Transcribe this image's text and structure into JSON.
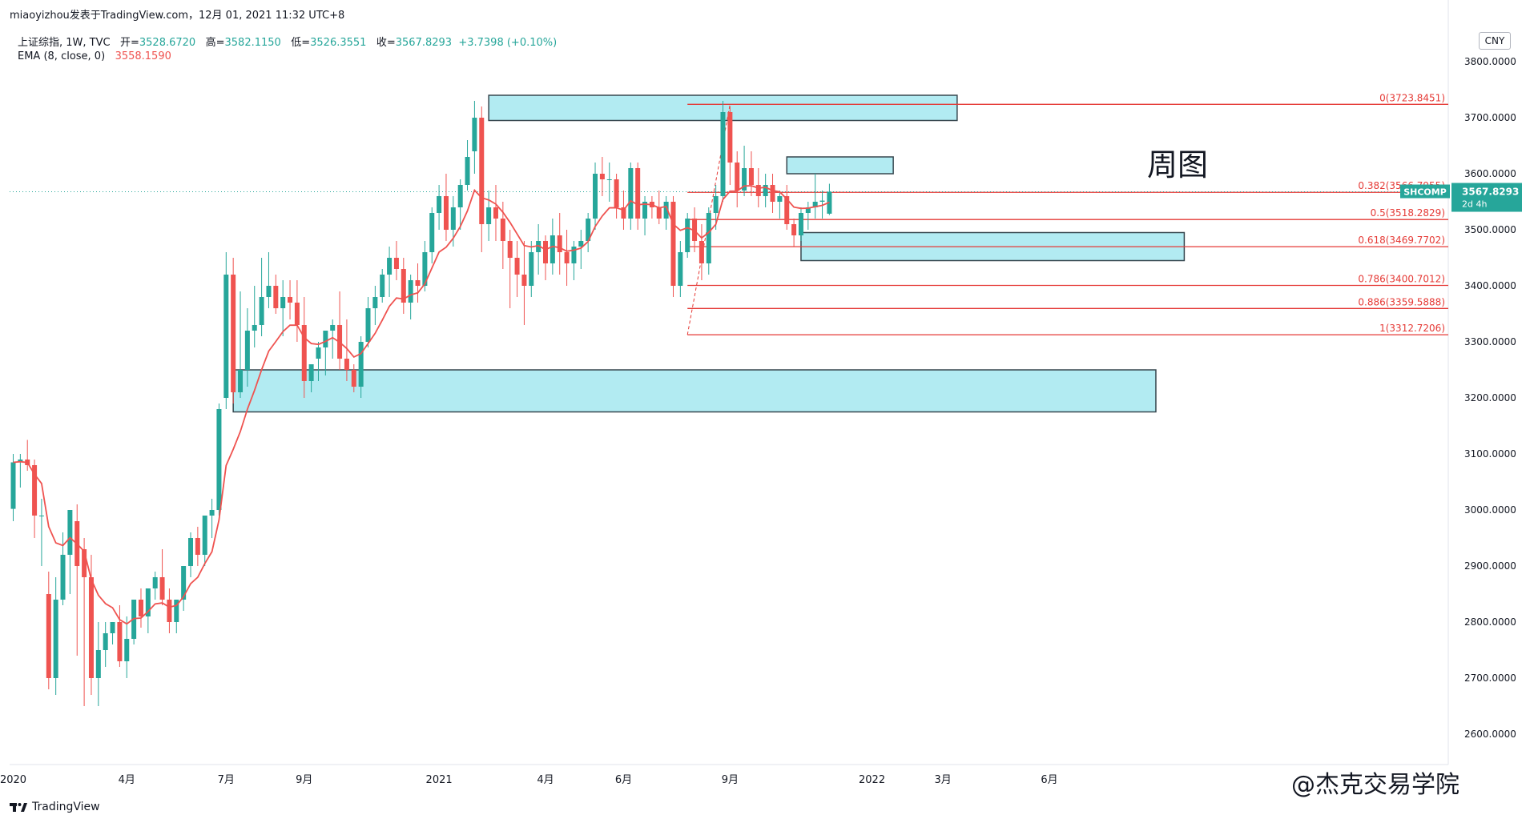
{
  "header": {
    "publisher": "miaoyizhou发表于TradingView.com，12月 01, 2021 11:32 UTC+8",
    "symbol": "上证综指, 1W, TVC",
    "open_label": "开=",
    "open": "3528.6720",
    "high_label": "高=",
    "high": "3582.1150",
    "low_label": "低=",
    "low": "3526.3551",
    "close_label": "收=",
    "close": "3567.8293",
    "change": "+3.7398 (+0.10%)",
    "ema_label": "EMA (8, close, 0)",
    "ema_value": "3558.1590"
  },
  "currency": "CNY",
  "annotation_title": "周图",
  "footer": {
    "brand": "TradingView",
    "watermark": "@杰克交易学院"
  },
  "price_tag": {
    "symbol": "SHCOMP",
    "value": "3567.8293",
    "countdown": "2d 4h"
  },
  "colors": {
    "up": "#26a69a",
    "down": "#ef5350",
    "ema": "#ef5350",
    "zone_fill": "#b2ebf2",
    "zone_border": "#37474f",
    "fib": "#e53935"
  },
  "chart_data": {
    "type": "candlestick",
    "title": "上证综指, 1W, TVC",
    "ylim": [
      2530,
      3860
    ],
    "y_ticks": [
      "3800.0000",
      "3700.0000",
      "3600.0000",
      "3500.0000",
      "3400.0000",
      "3300.0000",
      "3200.0000",
      "3100.0000",
      "3000.0000",
      "2900.0000",
      "2800.0000",
      "2700.0000",
      "2600.0000"
    ],
    "x_tick_labels": [
      "2020",
      "4月",
      "7月",
      "9月",
      "2021",
      "4月",
      "6月",
      "9月",
      "2022",
      "3月",
      "6月"
    ],
    "ohlc": [
      [
        3002,
        3100,
        2980,
        3085
      ],
      [
        3085,
        3100,
        3040,
        3090
      ],
      [
        3090,
        3125,
        3070,
        3080
      ],
      [
        3080,
        3090,
        2950,
        2990
      ],
      [
        2990,
        3020,
        2900,
        2990
      ],
      [
        2850,
        2890,
        2680,
        2700
      ],
      [
        2700,
        2880,
        2670,
        2840
      ],
      [
        2840,
        2960,
        2830,
        2920
      ],
      [
        2920,
        3000,
        2850,
        3000
      ],
      [
        2980,
        3010,
        2740,
        2900
      ],
      [
        2930,
        2950,
        2650,
        2880
      ],
      [
        2880,
        2920,
        2670,
        2700
      ],
      [
        2700,
        2800,
        2650,
        2750
      ],
      [
        2750,
        2800,
        2720,
        2780
      ],
      [
        2780,
        2800,
        2760,
        2800
      ],
      [
        2800,
        2830,
        2720,
        2730
      ],
      [
        2730,
        2810,
        2700,
        2770
      ],
      [
        2770,
        2840,
        2760,
        2840
      ],
      [
        2840,
        2860,
        2790,
        2810
      ],
      [
        2810,
        2860,
        2780,
        2860
      ],
      [
        2860,
        2890,
        2840,
        2880
      ],
      [
        2880,
        2930,
        2830,
        2840
      ],
      [
        2840,
        2860,
        2780,
        2800
      ],
      [
        2800,
        2840,
        2780,
        2840
      ],
      [
        2840,
        2900,
        2820,
        2900
      ],
      [
        2900,
        2960,
        2880,
        2950
      ],
      [
        2950,
        2970,
        2900,
        2920
      ],
      [
        2920,
        2990,
        2900,
        2990
      ],
      [
        2990,
        3020,
        2950,
        3000
      ],
      [
        3000,
        3190,
        2990,
        3180
      ],
      [
        3200,
        3460,
        3180,
        3420
      ],
      [
        3420,
        3450,
        3190,
        3210
      ],
      [
        3210,
        3390,
        3200,
        3250
      ],
      [
        3250,
        3360,
        3220,
        3320
      ],
      [
        3320,
        3400,
        3290,
        3330
      ],
      [
        3330,
        3450,
        3310,
        3380
      ],
      [
        3380,
        3460,
        3360,
        3400
      ],
      [
        3400,
        3420,
        3350,
        3360
      ],
      [
        3360,
        3410,
        3310,
        3380
      ],
      [
        3380,
        3410,
        3340,
        3370
      ],
      [
        3370,
        3410,
        3300,
        3330
      ],
      [
        3330,
        3380,
        3200,
        3230
      ],
      [
        3230,
        3260,
        3210,
        3260
      ],
      [
        3270,
        3300,
        3230,
        3290
      ],
      [
        3290,
        3320,
        3240,
        3320
      ],
      [
        3320,
        3340,
        3270,
        3330
      ],
      [
        3330,
        3390,
        3250,
        3270
      ],
      [
        3270,
        3340,
        3230,
        3250
      ],
      [
        3250,
        3260,
        3210,
        3220
      ],
      [
        3220,
        3310,
        3200,
        3300
      ],
      [
        3300,
        3380,
        3290,
        3360
      ],
      [
        3360,
        3400,
        3330,
        3380
      ],
      [
        3380,
        3430,
        3370,
        3420
      ],
      [
        3420,
        3470,
        3380,
        3450
      ],
      [
        3450,
        3480,
        3410,
        3430
      ],
      [
        3430,
        3450,
        3350,
        3370
      ],
      [
        3370,
        3420,
        3340,
        3410
      ],
      [
        3410,
        3440,
        3370,
        3400
      ],
      [
        3400,
        3480,
        3390,
        3460
      ],
      [
        3460,
        3540,
        3440,
        3530
      ],
      [
        3530,
        3580,
        3500,
        3560
      ],
      [
        3560,
        3600,
        3480,
        3500
      ],
      [
        3500,
        3560,
        3470,
        3540
      ],
      [
        3540,
        3590,
        3500,
        3580
      ],
      [
        3580,
        3660,
        3570,
        3630
      ],
      [
        3640,
        3730,
        3600,
        3700
      ],
      [
        3700,
        3720,
        3460,
        3510
      ],
      [
        3510,
        3570,
        3480,
        3540
      ],
      [
        3540,
        3580,
        3480,
        3520
      ],
      [
        3520,
        3550,
        3430,
        3480
      ],
      [
        3480,
        3500,
        3360,
        3450
      ],
      [
        3450,
        3480,
        3380,
        3420
      ],
      [
        3420,
        3480,
        3330,
        3400
      ],
      [
        3400,
        3480,
        3380,
        3460
      ],
      [
        3460,
        3510,
        3420,
        3480
      ],
      [
        3480,
        3490,
        3410,
        3440
      ],
      [
        3440,
        3520,
        3420,
        3490
      ],
      [
        3490,
        3530,
        3420,
        3460
      ],
      [
        3460,
        3500,
        3400,
        3440
      ],
      [
        3440,
        3480,
        3410,
        3470
      ],
      [
        3470,
        3500,
        3430,
        3480
      ],
      [
        3480,
        3530,
        3460,
        3520
      ],
      [
        3520,
        3620,
        3500,
        3600
      ],
      [
        3600,
        3630,
        3560,
        3590
      ],
      [
        3590,
        3620,
        3550,
        3590
      ],
      [
        3590,
        3600,
        3520,
        3540
      ],
      [
        3540,
        3570,
        3500,
        3520
      ],
      [
        3520,
        3620,
        3500,
        3610
      ],
      [
        3610,
        3620,
        3500,
        3520
      ],
      [
        3520,
        3560,
        3490,
        3550
      ],
      [
        3550,
        3560,
        3520,
        3540
      ],
      [
        3540,
        3570,
        3510,
        3520
      ],
      [
        3520,
        3560,
        3500,
        3550
      ],
      [
        3550,
        3560,
        3380,
        3400
      ],
      [
        3400,
        3480,
        3380,
        3460
      ],
      [
        3460,
        3530,
        3450,
        3520
      ],
      [
        3520,
        3540,
        3460,
        3480
      ],
      [
        3480,
        3510,
        3410,
        3440
      ],
      [
        3440,
        3540,
        3420,
        3530
      ],
      [
        3530,
        3580,
        3500,
        3560
      ],
      [
        3560,
        3730,
        3550,
        3710
      ],
      [
        3710,
        3720,
        3580,
        3620
      ],
      [
        3620,
        3640,
        3540,
        3570
      ],
      [
        3570,
        3650,
        3560,
        3610
      ],
      [
        3610,
        3640,
        3560,
        3580
      ],
      [
        3580,
        3610,
        3540,
        3560
      ],
      [
        3560,
        3600,
        3540,
        3580
      ],
      [
        3580,
        3600,
        3530,
        3550
      ],
      [
        3550,
        3570,
        3520,
        3560
      ],
      [
        3560,
        3580,
        3500,
        3510
      ],
      [
        3510,
        3520,
        3470,
        3490
      ],
      [
        3490,
        3540,
        3480,
        3530
      ],
      [
        3530,
        3550,
        3500,
        3540
      ],
      [
        3540,
        3600,
        3520,
        3550
      ],
      [
        3550,
        3570,
        3520,
        3552
      ],
      [
        3528.672,
        3582.115,
        3526.3551,
        3567.8293
      ]
    ],
    "ema_period": 8,
    "ema_last": 3558.159,
    "last_price": 3567.8293,
    "zones": [
      {
        "y_top": 3740,
        "y_bottom": 3695,
        "t_start": 67,
        "t_end": 133
      },
      {
        "y_top": 3630,
        "y_bottom": 3600,
        "t_start": 109,
        "t_end": 124
      },
      {
        "y_top": 3495,
        "y_bottom": 3445,
        "t_start": 111,
        "t_end": 165
      },
      {
        "y_top": 3250,
        "y_bottom": 3175,
        "t_start": 31,
        "t_end": 161
      }
    ],
    "fib_levels": [
      {
        "label": "0(3723.8451)",
        "value": 3723.8451
      },
      {
        "label": "0.382(3566.7955)",
        "value": 3566.7955
      },
      {
        "label": "0.5(3518.2829)",
        "value": 3518.2829
      },
      {
        "label": "0.618(3469.7702)",
        "value": 3469.7702
      },
      {
        "label": "0.786(3400.7012)",
        "value": 3400.7012
      },
      {
        "label": "0.886(3359.5888)",
        "value": 3359.5888
      },
      {
        "label": "1(3312.7206)",
        "value": 3312.7206
      }
    ]
  }
}
